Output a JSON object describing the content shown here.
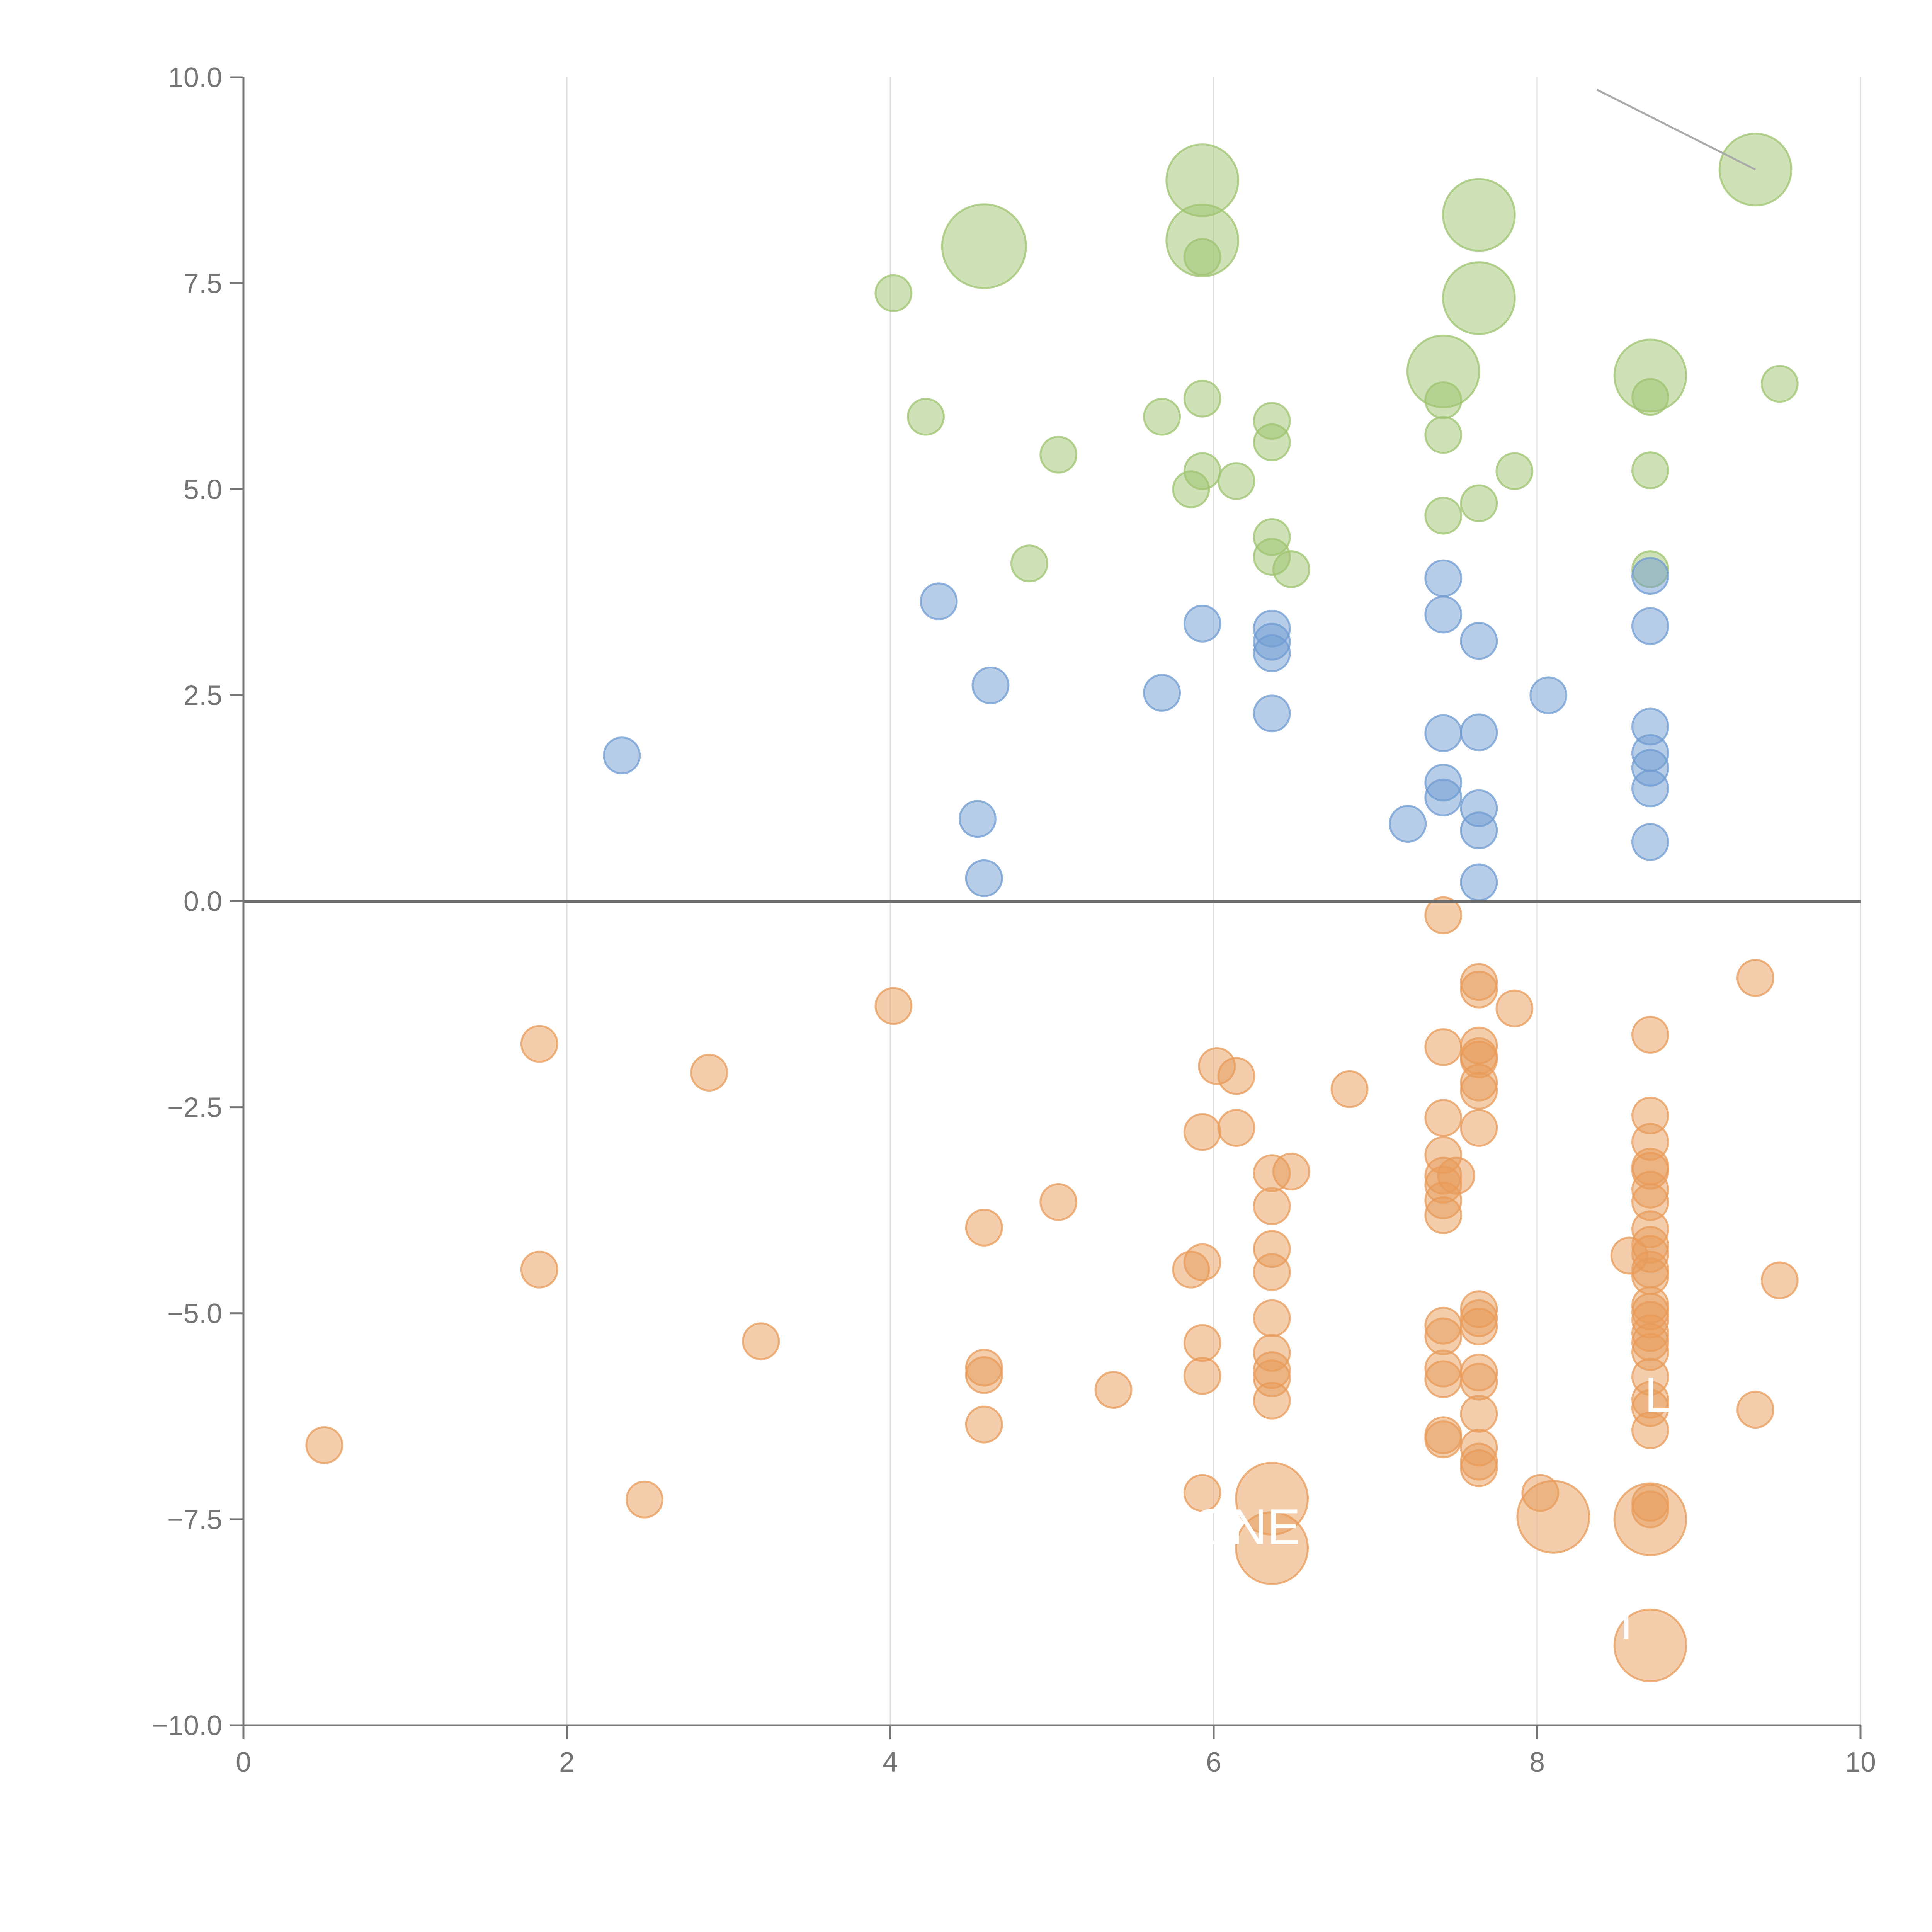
{
  "chart_data": {
    "type": "scatter",
    "title": "",
    "xlabel": "",
    "ylabel": "",
    "xlim": [
      0,
      10
    ],
    "ylim": [
      -10,
      10
    ],
    "x_ticks": [
      "0",
      "2",
      "4",
      "6",
      "8",
      "10"
    ],
    "y_ticks": [
      "10.0",
      "7.5",
      "5.0",
      "2.5",
      "0.0",
      "−2.5",
      "−5.0",
      "−7.5",
      "−10.0"
    ],
    "grid": "vertical",
    "reference_line_y": 0,
    "colors": {
      "green": "#9dc36f",
      "blue": "#6f9bd1",
      "orange": "#e89b5a",
      "grid": "#dddddd",
      "axis": "#757575",
      "zero_line": "#6b6b6b"
    },
    "series": [
      {
        "name": "green",
        "color": "#9dc36f",
        "points": [
          [
            4.02,
            7.38,
            0.3
          ],
          [
            4.22,
            5.88,
            0.3
          ],
          [
            4.58,
            7.95,
            0.7
          ],
          [
            4.86,
            4.1,
            0.3
          ],
          [
            5.04,
            5.42,
            0.3
          ],
          [
            5.68,
            5.88,
            0.3
          ],
          [
            5.86,
            5.0,
            0.3
          ],
          [
            5.93,
            8.75,
            0.6
          ],
          [
            5.93,
            8.02,
            0.6
          ],
          [
            5.93,
            7.82,
            0.3
          ],
          [
            5.93,
            6.1,
            0.3
          ],
          [
            5.93,
            5.22,
            0.3
          ],
          [
            6.14,
            5.1,
            0.3
          ],
          [
            6.36,
            5.83,
            0.3
          ],
          [
            6.36,
            5.57,
            0.3
          ],
          [
            6.36,
            4.42,
            0.3
          ],
          [
            6.36,
            4.18,
            0.3
          ],
          [
            6.48,
            4.03,
            0.3
          ],
          [
            7.42,
            6.43,
            0.6
          ],
          [
            7.42,
            6.08,
            0.3
          ],
          [
            7.42,
            5.66,
            0.3
          ],
          [
            7.42,
            4.68,
            0.3
          ],
          [
            7.64,
            8.33,
            0.6
          ],
          [
            7.64,
            7.32,
            0.6
          ],
          [
            7.64,
            4.83,
            0.3
          ],
          [
            7.86,
            5.22,
            0.3
          ],
          [
            8.7,
            6.38,
            0.6
          ],
          [
            8.7,
            6.12,
            0.3
          ],
          [
            8.7,
            5.23,
            0.3
          ],
          [
            8.7,
            4.03,
            0.3
          ],
          [
            9.35,
            8.88,
            0.6
          ],
          [
            9.5,
            6.28,
            0.3
          ]
        ]
      },
      {
        "name": "blue",
        "color": "#6f9bd1",
        "points": [
          [
            2.34,
            1.77,
            0.3
          ],
          [
            4.3,
            3.64,
            0.3
          ],
          [
            4.54,
            1.0,
            0.3
          ],
          [
            4.58,
            0.28,
            0.3
          ],
          [
            4.62,
            2.62,
            0.3
          ],
          [
            5.68,
            2.53,
            0.3
          ],
          [
            5.93,
            3.37,
            0.3
          ],
          [
            6.36,
            3.31,
            0.3
          ],
          [
            6.36,
            3.15,
            0.3
          ],
          [
            6.36,
            3.01,
            0.3
          ],
          [
            6.36,
            2.28,
            0.3
          ],
          [
            7.2,
            0.94,
            0.3
          ],
          [
            7.42,
            3.92,
            0.3
          ],
          [
            7.42,
            3.48,
            0.3
          ],
          [
            7.42,
            2.04,
            0.3
          ],
          [
            7.42,
            1.44,
            0.3
          ],
          [
            7.42,
            1.26,
            0.3
          ],
          [
            7.64,
            3.16,
            0.3
          ],
          [
            7.64,
            2.05,
            0.3
          ],
          [
            7.64,
            1.13,
            0.3
          ],
          [
            7.64,
            0.86,
            0.3
          ],
          [
            7.64,
            0.23,
            0.3
          ],
          [
            8.07,
            2.5,
            0.3
          ],
          [
            8.7,
            3.95,
            0.3
          ],
          [
            8.7,
            3.34,
            0.3
          ],
          [
            8.7,
            2.12,
            0.3
          ],
          [
            8.7,
            1.8,
            0.3
          ],
          [
            8.7,
            1.62,
            0.3
          ],
          [
            8.7,
            1.37,
            0.3
          ],
          [
            8.7,
            0.72,
            0.3
          ]
        ]
      },
      {
        "name": "orange",
        "color": "#e89b5a",
        "points": [
          [
            0.5,
            -6.6,
            0.3
          ],
          [
            1.83,
            -1.73,
            0.3
          ],
          [
            1.83,
            -4.47,
            0.3
          ],
          [
            2.48,
            -7.26,
            0.3
          ],
          [
            2.88,
            -2.08,
            0.3
          ],
          [
            3.2,
            -5.34,
            0.3
          ],
          [
            4.02,
            -1.27,
            0.3
          ],
          [
            4.58,
            -3.96,
            0.3
          ],
          [
            4.58,
            -5.66,
            0.3
          ],
          [
            4.58,
            -5.75,
            0.3
          ],
          [
            4.58,
            -6.35,
            0.3
          ],
          [
            5.04,
            -3.65,
            0.3
          ],
          [
            5.38,
            -5.93,
            0.3
          ],
          [
            5.86,
            -4.47,
            0.3
          ],
          [
            5.93,
            -2.8,
            0.3
          ],
          [
            5.93,
            -4.38,
            0.3
          ],
          [
            5.93,
            -5.36,
            0.3
          ],
          [
            5.93,
            -5.76,
            0.3
          ],
          [
            5.93,
            -7.18,
            0.3
          ],
          [
            6.02,
            -2.0,
            0.3
          ],
          [
            6.14,
            -2.12,
            0.3
          ],
          [
            6.14,
            -2.75,
            0.3
          ],
          [
            6.36,
            -3.3,
            0.3
          ],
          [
            6.36,
            -3.7,
            0.3
          ],
          [
            6.36,
            -4.22,
            0.3
          ],
          [
            6.36,
            -4.5,
            0.3
          ],
          [
            6.36,
            -5.06,
            0.3
          ],
          [
            6.36,
            -5.48,
            0.3
          ],
          [
            6.36,
            -5.69,
            0.3
          ],
          [
            6.36,
            -5.79,
            0.3
          ],
          [
            6.36,
            -6.06,
            0.3
          ],
          [
            6.36,
            -7.25,
            0.6
          ],
          [
            6.36,
            -7.85,
            0.6
          ],
          [
            6.48,
            -3.28,
            0.3
          ],
          [
            6.84,
            -2.28,
            0.3
          ],
          [
            7.42,
            -0.17,
            0.3
          ],
          [
            7.42,
            -1.77,
            0.3
          ],
          [
            7.42,
            -2.63,
            0.3
          ],
          [
            7.42,
            -3.08,
            0.3
          ],
          [
            7.42,
            -3.33,
            0.3
          ],
          [
            7.42,
            -3.44,
            0.3
          ],
          [
            7.42,
            -3.63,
            0.3
          ],
          [
            7.42,
            -3.81,
            0.3
          ],
          [
            7.42,
            -5.15,
            0.3
          ],
          [
            7.42,
            -5.28,
            0.3
          ],
          [
            7.42,
            -5.67,
            0.3
          ],
          [
            7.42,
            -5.8,
            0.3
          ],
          [
            7.42,
            -6.48,
            0.3
          ],
          [
            7.42,
            -6.53,
            0.3
          ],
          [
            7.5,
            -3.33,
            0.3
          ],
          [
            7.64,
            -0.98,
            0.3
          ],
          [
            7.64,
            -1.07,
            0.3
          ],
          [
            7.64,
            -1.75,
            0.3
          ],
          [
            7.64,
            -1.88,
            0.3
          ],
          [
            7.64,
            -1.92,
            0.3
          ],
          [
            7.64,
            -2.2,
            0.3
          ],
          [
            7.64,
            -2.3,
            0.3
          ],
          [
            7.64,
            -2.75,
            0.3
          ],
          [
            7.64,
            -4.95,
            0.3
          ],
          [
            7.64,
            -5.06,
            0.3
          ],
          [
            7.64,
            -5.16,
            0.3
          ],
          [
            7.64,
            -5.72,
            0.3
          ],
          [
            7.64,
            -5.83,
            0.3
          ],
          [
            7.64,
            -6.22,
            0.3
          ],
          [
            7.64,
            -6.63,
            0.3
          ],
          [
            7.64,
            -6.8,
            0.3
          ],
          [
            7.64,
            -6.88,
            0.3
          ],
          [
            7.86,
            -1.3,
            0.3
          ],
          [
            8.02,
            -7.18,
            0.3
          ],
          [
            8.1,
            -7.47,
            0.6
          ],
          [
            8.57,
            -4.3,
            0.3
          ],
          [
            8.7,
            -1.62,
            0.3
          ],
          [
            8.7,
            -2.6,
            0.3
          ],
          [
            8.7,
            -2.92,
            0.3
          ],
          [
            8.7,
            -3.22,
            0.3
          ],
          [
            8.7,
            -3.27,
            0.3
          ],
          [
            8.7,
            -3.5,
            0.3
          ],
          [
            8.7,
            -3.65,
            0.3
          ],
          [
            8.7,
            -3.98,
            0.3
          ],
          [
            8.7,
            -4.17,
            0.3
          ],
          [
            8.7,
            -4.28,
            0.3
          ],
          [
            8.7,
            -4.47,
            0.3
          ],
          [
            8.7,
            -4.55,
            0.3
          ],
          [
            8.7,
            -4.9,
            0.3
          ],
          [
            8.7,
            -4.98,
            0.3
          ],
          [
            8.7,
            -5.08,
            0.3
          ],
          [
            8.7,
            -5.24,
            0.3
          ],
          [
            8.7,
            -5.35,
            0.3
          ],
          [
            8.7,
            -5.47,
            0.3
          ],
          [
            8.7,
            -5.77,
            0.3
          ],
          [
            8.7,
            -6.05,
            0.3
          ],
          [
            8.7,
            -6.15,
            0.3
          ],
          [
            8.7,
            -6.42,
            0.3
          ],
          [
            8.7,
            -7.3,
            0.3
          ],
          [
            8.7,
            -7.38,
            0.3
          ],
          [
            8.7,
            -7.5,
            0.6
          ],
          [
            8.7,
            -9.03,
            0.6
          ],
          [
            9.35,
            -0.93,
            0.3
          ],
          [
            9.35,
            -6.17,
            0.3
          ],
          [
            9.5,
            -4.6,
            0.3
          ]
        ]
      }
    ],
    "annotations": [
      {
        "text": "ONE",
        "x": 6.2,
        "y": -7.8
      },
      {
        "text": "L",
        "x": 8.75,
        "y": -6.2
      },
      {
        "text": "I",
        "x": 8.55,
        "y": -8.95
      }
    ],
    "leader_line": {
      "x1": 8.37,
      "y1": 9.85,
      "x2": 9.35,
      "y2": 8.88
    }
  }
}
